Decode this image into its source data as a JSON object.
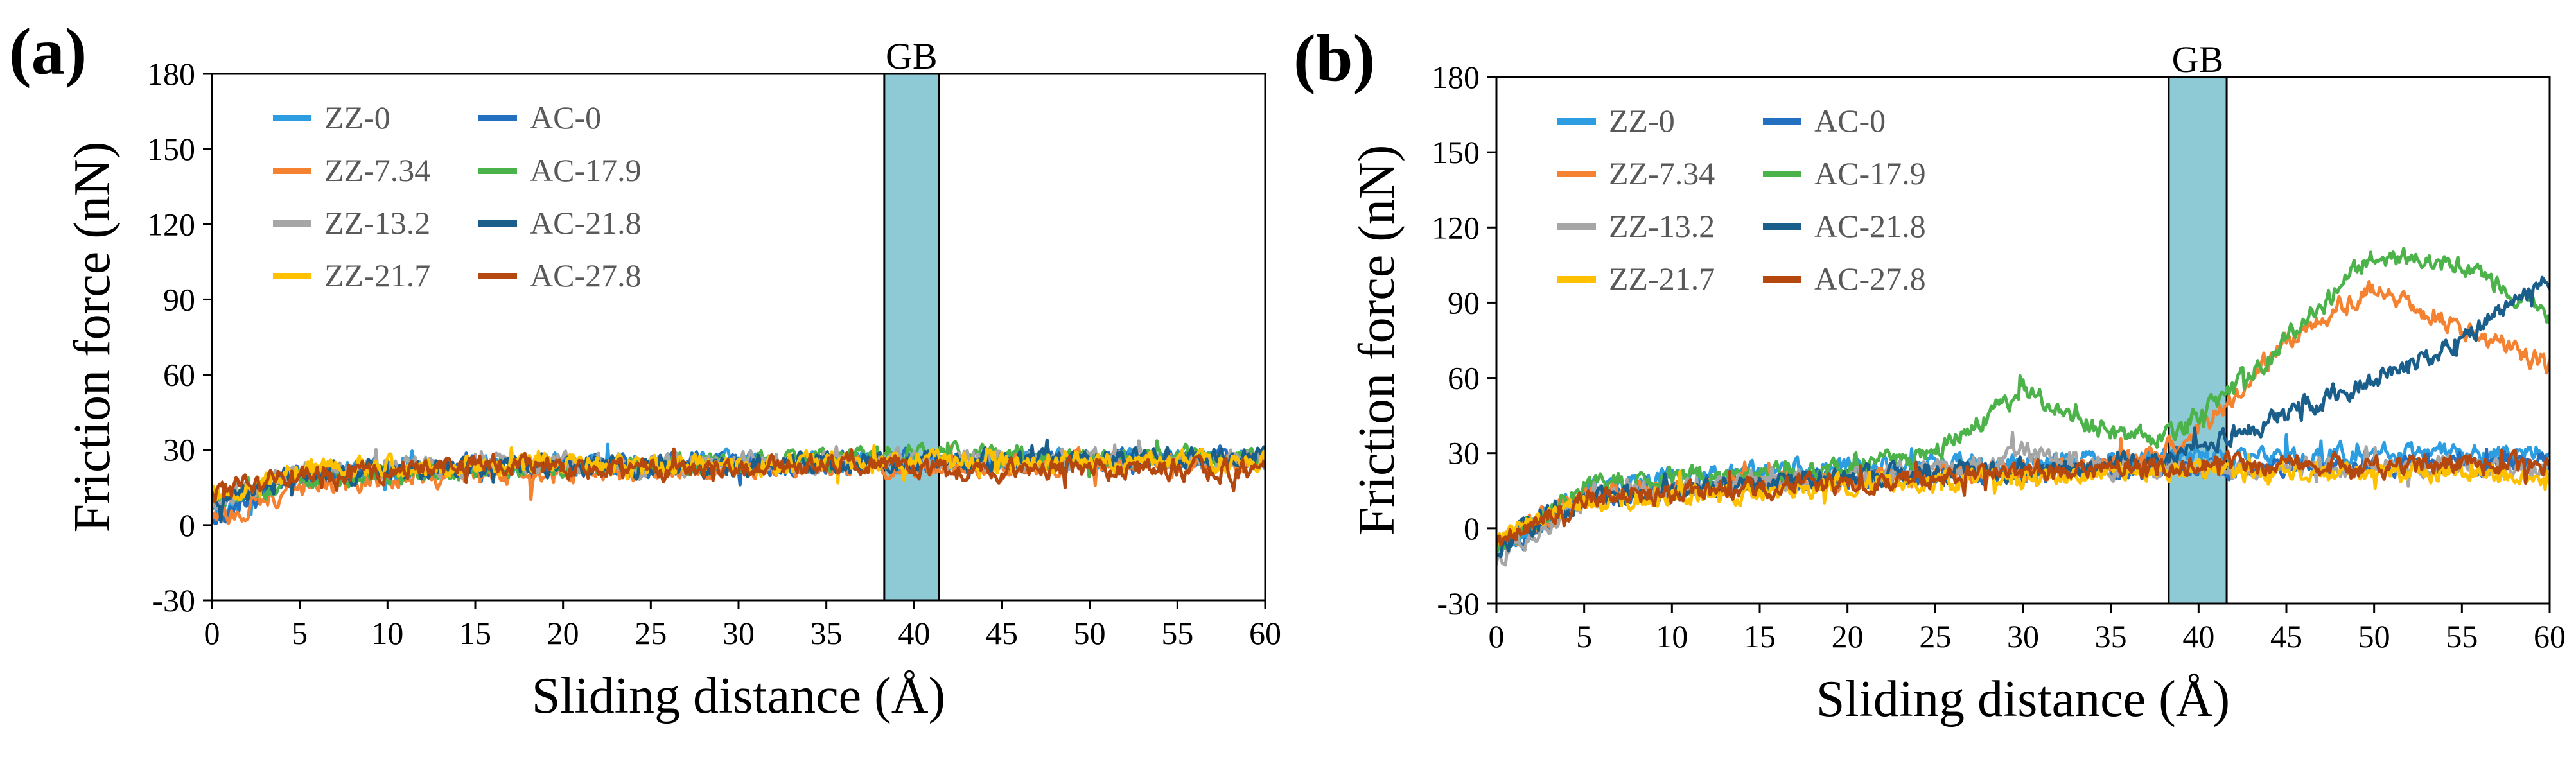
{
  "figure": {
    "panels": [
      "(a)",
      "(b)"
    ]
  },
  "colors": {
    "ZZ-0": "#2b9de0",
    "AC-0": "#2470c0",
    "ZZ-7.34": "#f58231",
    "AC-17.9": "#4cb34a",
    "ZZ-13.2": "#a6a6a6",
    "AC-21.8": "#1a5e8c",
    "ZZ-21.7": "#ffc000",
    "AC-27.8": "#b5480f",
    "gb_fill": "#8ecad6"
  },
  "chart_data": [
    {
      "type": "line",
      "panel_label": "(a)",
      "xlabel": "Sliding distance (Å)",
      "ylabel": "Friction force (nN)",
      "xlim": [
        0,
        60
      ],
      "ylim": [
        -30,
        180
      ],
      "xticks": [
        0,
        5,
        10,
        15,
        20,
        25,
        30,
        35,
        40,
        45,
        50,
        55,
        60
      ],
      "yticks": [
        -30,
        0,
        30,
        60,
        90,
        120,
        150,
        180
      ],
      "grid": false,
      "legend_position": "top-left",
      "annotation": {
        "text": "GB",
        "x_start": 38.3,
        "x_end": 41.4
      },
      "series": [
        {
          "name": "ZZ-0",
          "x": [
            0,
            5,
            10,
            15,
            20,
            25,
            30,
            35,
            38,
            41,
            45,
            50,
            55,
            60
          ],
          "y": [
            5,
            20,
            22,
            23,
            24,
            24,
            25,
            25,
            25,
            25,
            25,
            26,
            26,
            27
          ]
        },
        {
          "name": "AC-0",
          "x": [
            0,
            5,
            10,
            15,
            20,
            25,
            30,
            35,
            38,
            41,
            45,
            50,
            55,
            60
          ],
          "y": [
            3,
            20,
            22,
            23,
            24,
            25,
            25,
            25,
            25,
            25,
            25,
            26,
            27,
            27
          ]
        },
        {
          "name": "ZZ-7.34",
          "x": [
            0,
            5,
            10,
            15,
            20,
            25,
            30,
            35,
            38,
            41,
            45,
            50,
            55,
            60
          ],
          "y": [
            2,
            15,
            18,
            20,
            21,
            22,
            22,
            23,
            23,
            24,
            24,
            25,
            25,
            25
          ]
        },
        {
          "name": "AC-17.9",
          "x": [
            0,
            5,
            10,
            15,
            20,
            25,
            30,
            35,
            38,
            41,
            45,
            50,
            55,
            60
          ],
          "y": [
            10,
            18,
            20,
            22,
            23,
            24,
            25,
            26,
            28,
            30,
            28,
            27,
            27,
            27
          ]
        },
        {
          "name": "ZZ-13.2",
          "x": [
            0,
            5,
            10,
            15,
            20,
            25,
            30,
            35,
            38,
            41,
            45,
            50,
            55,
            60
          ],
          "y": [
            10,
            22,
            23,
            24,
            24,
            24,
            25,
            25,
            26,
            26,
            26,
            26,
            26,
            26
          ]
        },
        {
          "name": "AC-21.8",
          "x": [
            0,
            5,
            10,
            15,
            20,
            25,
            30,
            35,
            38,
            41,
            45,
            50,
            55,
            60
          ],
          "y": [
            10,
            20,
            22,
            23,
            24,
            24,
            24,
            25,
            25,
            25,
            26,
            26,
            27,
            27
          ]
        },
        {
          "name": "ZZ-21.7",
          "x": [
            0,
            5,
            10,
            15,
            20,
            25,
            30,
            35,
            38,
            41,
            45,
            50,
            55,
            60
          ],
          "y": [
            12,
            22,
            23,
            24,
            24,
            24,
            24,
            25,
            25,
            25,
            25,
            25,
            25,
            25
          ]
        },
        {
          "name": "AC-27.8",
          "x": [
            0,
            5,
            10,
            15,
            20,
            25,
            30,
            35,
            38,
            41,
            45,
            50,
            55,
            60
          ],
          "y": [
            12,
            20,
            21,
            25,
            23,
            22,
            23,
            24,
            25,
            22,
            22,
            23,
            22,
            22
          ]
        }
      ]
    },
    {
      "type": "line",
      "panel_label": "(b)",
      "xlabel": "Sliding distance (Å)",
      "ylabel": "Friction force (nN)",
      "xlim": [
        0,
        60
      ],
      "ylim": [
        -30,
        180
      ],
      "xticks": [
        0,
        5,
        10,
        15,
        20,
        25,
        30,
        35,
        40,
        45,
        50,
        55,
        60
      ],
      "yticks": [
        -30,
        0,
        30,
        60,
        90,
        120,
        150,
        180
      ],
      "grid": false,
      "legend_position": "top-left",
      "annotation": {
        "text": "GB",
        "x_start": 38.3,
        "x_end": 41.6
      },
      "series": [
        {
          "name": "ZZ-0",
          "x": [
            0,
            5,
            10,
            15,
            20,
            25,
            30,
            35,
            38,
            41,
            45,
            50,
            55,
            60
          ],
          "y": [
            -8,
            15,
            20,
            22,
            24,
            25,
            26,
            27,
            28,
            28,
            29,
            30,
            30,
            30
          ]
        },
        {
          "name": "AC-0",
          "x": [
            0,
            5,
            10,
            15,
            20,
            25,
            30,
            35,
            38,
            41,
            45,
            50,
            55,
            60
          ],
          "y": [
            -8,
            12,
            15,
            18,
            20,
            22,
            22,
            23,
            24,
            24,
            25,
            25,
            26,
            26
          ]
        },
        {
          "name": "ZZ-7.34",
          "x": [
            0,
            5,
            10,
            15,
            20,
            25,
            30,
            35,
            38,
            41,
            45,
            50,
            55,
            60
          ],
          "y": [
            -8,
            14,
            16,
            18,
            20,
            22,
            24,
            26,
            30,
            45,
            75,
            95,
            80,
            65
          ]
        },
        {
          "name": "AC-17.9",
          "x": [
            0,
            5,
            10,
            15,
            20,
            25,
            30,
            35,
            38,
            41,
            45,
            50,
            55,
            60
          ],
          "y": [
            -8,
            18,
            20,
            22,
            25,
            30,
            55,
            38,
            35,
            50,
            75,
            110,
            105,
            85
          ]
        },
        {
          "name": "ZZ-13.2",
          "x": [
            0,
            5,
            10,
            15,
            20,
            25,
            30,
            35,
            38,
            41,
            45,
            50,
            55,
            60
          ],
          "y": [
            -12,
            12,
            15,
            18,
            20,
            22,
            30,
            25,
            24,
            24,
            24,
            25,
            25,
            25
          ]
        },
        {
          "name": "AC-21.8",
          "x": [
            0,
            5,
            10,
            15,
            20,
            25,
            30,
            35,
            38,
            41,
            45,
            50,
            55,
            60
          ],
          "y": [
            -8,
            12,
            15,
            18,
            20,
            22,
            24,
            25,
            28,
            35,
            45,
            60,
            75,
            100
          ]
        },
        {
          "name": "ZZ-21.7",
          "x": [
            0,
            5,
            10,
            15,
            20,
            25,
            30,
            35,
            38,
            41,
            45,
            50,
            55,
            60
          ],
          "y": [
            -5,
            10,
            12,
            15,
            17,
            18,
            20,
            22,
            22,
            22,
            22,
            22,
            22,
            20
          ]
        },
        {
          "name": "AC-27.8",
          "x": [
            0,
            5,
            10,
            15,
            20,
            25,
            30,
            35,
            38,
            41,
            45,
            50,
            55,
            60
          ],
          "y": [
            -5,
            12,
            14,
            16,
            18,
            20,
            22,
            24,
            25,
            25,
            25,
            25,
            26,
            25
          ]
        }
      ]
    }
  ]
}
